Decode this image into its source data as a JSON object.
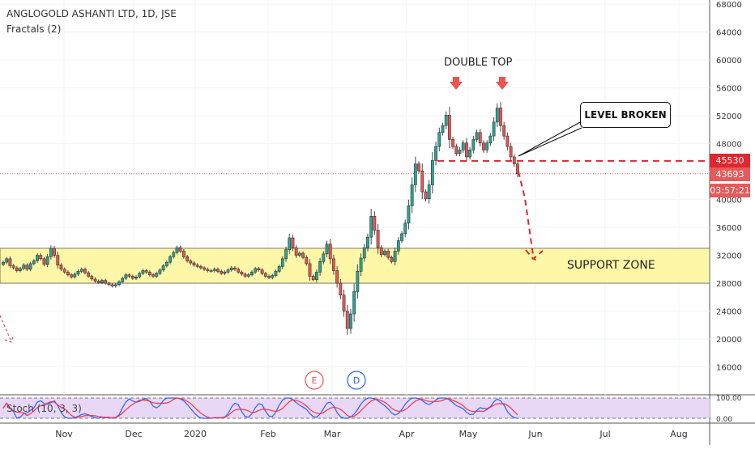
{
  "header": {
    "symbol_line": "ANGLOGOLD ASHANTI LTD, 1D, JSE",
    "indicator_line": "Fractals (2)"
  },
  "price_tags": {
    "resistance": "45530",
    "last": "43693",
    "countdown": "03:57:21"
  },
  "annotations": {
    "double_top": "DOUBLE TOP",
    "level_broken": "LEVEL BROKEN",
    "support_zone": "SUPPORT ZONE"
  },
  "events": {
    "earnings_label": "E",
    "dividend_label": "D"
  },
  "stoch": {
    "label": "Stoch (10, 3, 3)",
    "ticks": [
      "100.00",
      "0.00"
    ]
  },
  "colors": {
    "up": "#26a69a",
    "down": "#ef5350",
    "support_zone_fill": "#fff7a8",
    "resistance_line": "#e0262e",
    "stoch_k": "#2962ff",
    "stoch_d": "#f23645",
    "stoch_band": "#e8d7f5"
  },
  "chart_data": {
    "type": "candlestick",
    "y_axis": {
      "ticks": [
        16000,
        20000,
        24000,
        28000,
        32000,
        36000,
        40000,
        44000,
        48000,
        52000,
        56000,
        60000,
        64000,
        68000
      ],
      "ylim": [
        12000,
        68600
      ]
    },
    "x_axis": {
      "labels": [
        "Nov",
        "Dec",
        "2020",
        "Feb",
        "Mar",
        "Apr",
        "May",
        "Jun",
        "Jul",
        "Aug"
      ]
    },
    "levels": {
      "resistance": 45530,
      "last_price": 43693,
      "support_zone": [
        28000,
        33000
      ]
    },
    "close_series": [
      31000,
      31500,
      30500,
      30200,
      29800,
      30100,
      30600,
      30000,
      30800,
      31200,
      32000,
      31500,
      30700,
      31800,
      33000,
      32000,
      30600,
      30000,
      29600,
      29200,
      28900,
      29300,
      29700,
      30000,
      29500,
      29000,
      28600,
      28300,
      28100,
      28400,
      28000,
      27800,
      27600,
      27800,
      28200,
      28700,
      29200,
      29000,
      28700,
      28900,
      29400,
      29800,
      29600,
      29200,
      29000,
      29400,
      29900,
      30500,
      31000,
      31800,
      32400,
      33100,
      32600,
      31800,
      31200,
      30900,
      30600,
      30400,
      30200,
      30000,
      29800,
      29800,
      30000,
      29700,
      29400,
      29600,
      29900,
      30200,
      30000,
      29600,
      29300,
      29000,
      29200,
      29600,
      30100,
      29900,
      29400,
      29000,
      28800,
      29100,
      29700,
      30400,
      31500,
      32800,
      34500,
      33100,
      32000,
      32300,
      31700,
      30800,
      29000,
      28500,
      29600,
      31100,
      32200,
      33600,
      31500,
      29800,
      28000,
      26300,
      24000,
      21500,
      23600,
      26800,
      29700,
      31600,
      33100,
      34600,
      37600,
      35600,
      33100,
      32100,
      32600,
      31700,
      31100,
      32600,
      34100,
      35100,
      36600,
      39100,
      42100,
      45100,
      44100,
      41100,
      40100,
      42100,
      45600,
      47600,
      49600,
      50600,
      52100,
      48600,
      47600,
      46600,
      47100,
      48100,
      46100,
      47100,
      48600,
      49600,
      48100,
      47100,
      48100,
      49100,
      51100,
      53100,
      50600,
      49100,
      47600,
      46100,
      45100,
      43693
    ]
  }
}
